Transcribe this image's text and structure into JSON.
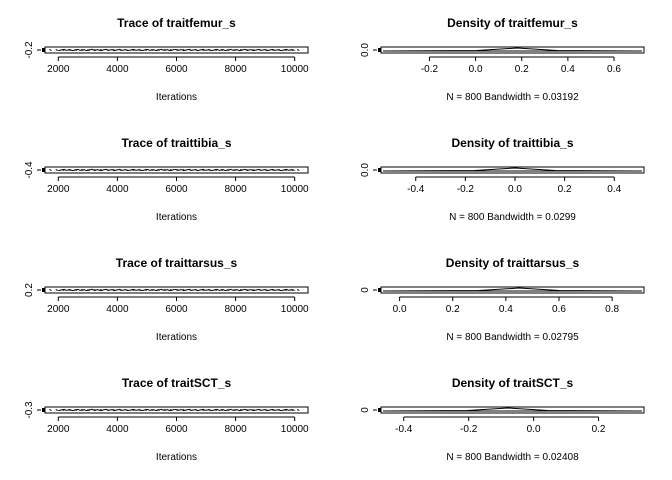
{
  "chart_data": [
    {
      "type": "line",
      "kind": "trace",
      "title": "Trace of traitfemur_s",
      "xlabel": "Iterations",
      "xlim": [
        1550,
        10450
      ],
      "x_ticks": [
        2000,
        4000,
        6000,
        8000,
        10000
      ],
      "x_tick_labels": [
        "2000",
        "4000",
        "6000",
        "8000",
        "10000"
      ],
      "ylim": [
        -0.262,
        -0.138
      ],
      "y_ticks": [
        -0.2
      ],
      "y_tick_labels": [
        "-0.2"
      ],
      "n_samples": 800,
      "y_center": -0.2
    },
    {
      "type": "line",
      "kind": "density",
      "title": "Density of traitfemur_s",
      "xlabel": "N = 800   Bandwidth = 0.03192",
      "xlim": [
        -0.41,
        0.73
      ],
      "x_ticks": [
        -0.2,
        0.0,
        0.2,
        0.4,
        0.6
      ],
      "x_tick_labels": [
        "-0.2",
        "0.0",
        "0.2",
        "0.4",
        "0.6"
      ],
      "ylim": [
        -0.1,
        0.1
      ],
      "y_ticks": [
        0.0
      ],
      "y_tick_labels": [
        "0.0"
      ],
      "peak_x": 0.18
    },
    {
      "type": "line",
      "kind": "trace",
      "title": "Trace of traittibia_s",
      "xlabel": "Iterations",
      "xlim": [
        1550,
        10450
      ],
      "x_ticks": [
        2000,
        4000,
        6000,
        8000,
        10000
      ],
      "x_tick_labels": [
        "2000",
        "4000",
        "6000",
        "8000",
        "10000"
      ],
      "ylim": [
        -0.462,
        -0.338
      ],
      "y_ticks": [
        -0.4
      ],
      "y_tick_labels": [
        "-0.4"
      ],
      "n_samples": 800,
      "y_center": -0.4
    },
    {
      "type": "line",
      "kind": "density",
      "title": "Density of traittibia_s",
      "xlabel": "N = 800   Bandwidth = 0.0299",
      "xlim": [
        -0.54,
        0.52
      ],
      "x_ticks": [
        -0.4,
        -0.2,
        0.0,
        0.2,
        0.4
      ],
      "x_tick_labels": [
        "-0.4",
        "-0.2",
        "0.0",
        "0.2",
        "0.4"
      ],
      "ylim": [
        -0.1,
        0.1
      ],
      "y_ticks": [
        0.0
      ],
      "y_tick_labels": [
        "0.0"
      ],
      "peak_x": 0.0
    },
    {
      "type": "line",
      "kind": "trace",
      "title": "Trace of traittarsus_s",
      "xlabel": "Iterations",
      "xlim": [
        1550,
        10450
      ],
      "x_ticks": [
        2000,
        4000,
        6000,
        8000,
        10000
      ],
      "x_tick_labels": [
        "2000",
        "4000",
        "6000",
        "8000",
        "10000"
      ],
      "ylim": [
        0.138,
        0.262
      ],
      "y_ticks": [
        0.2
      ],
      "y_tick_labels": [
        "0.2"
      ],
      "n_samples": 800,
      "y_center": 0.2
    },
    {
      "type": "line",
      "kind": "density",
      "title": "Density of traittarsus_s",
      "xlabel": "N = 800   Bandwidth = 0.02795",
      "xlim": [
        -0.07,
        0.92
      ],
      "x_ticks": [
        0.0,
        0.2,
        0.4,
        0.6,
        0.8
      ],
      "x_tick_labels": [
        "0.0",
        "0.2",
        "0.4",
        "0.6",
        "0.8"
      ],
      "ylim": [
        -0.1,
        0.1
      ],
      "y_ticks": [
        0
      ],
      "y_tick_labels": [
        "0"
      ],
      "peak_x": 0.45
    },
    {
      "type": "line",
      "kind": "trace",
      "title": "Trace of traitSCT_s",
      "xlabel": "Iterations",
      "xlim": [
        1550,
        10450
      ],
      "x_ticks": [
        2000,
        4000,
        6000,
        8000,
        10000
      ],
      "x_tick_labels": [
        "2000",
        "4000",
        "6000",
        "8000",
        "10000"
      ],
      "ylim": [
        -0.362,
        -0.238
      ],
      "y_ticks": [
        -0.3
      ],
      "y_tick_labels": [
        "-0.3"
      ],
      "n_samples": 800,
      "y_center": -0.3
    },
    {
      "type": "line",
      "kind": "density",
      "title": "Density of traitSCT_s",
      "xlabel": "N = 800   Bandwidth = 0.02408",
      "xlim": [
        -0.47,
        0.34
      ],
      "x_ticks": [
        -0.4,
        -0.2,
        0.0,
        0.2
      ],
      "x_tick_labels": [
        "-0.4",
        "-0.2",
        "0.0",
        "0.2"
      ],
      "ylim": [
        -0.1,
        0.1
      ],
      "y_ticks": [
        0
      ],
      "y_tick_labels": [
        "0"
      ],
      "peak_x": -0.08
    }
  ]
}
